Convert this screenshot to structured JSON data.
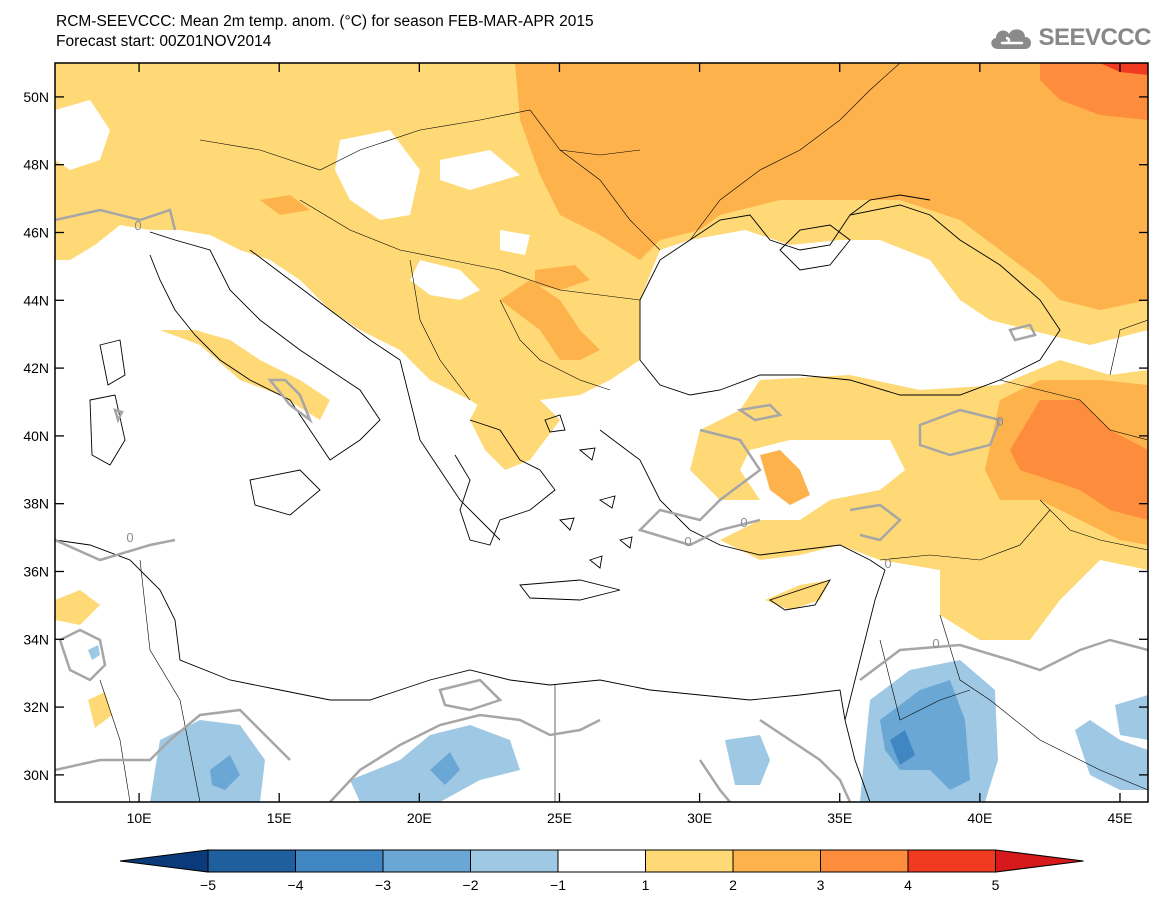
{
  "header": {
    "title_line1": "RCM-SEEVCCC: Mean 2m temp. anom. (°C) for season FEB-MAR-APR 2015",
    "title_line2": "Forecast start: 00Z01NOV2014",
    "logo_text": "SEEVCCC"
  },
  "map": {
    "lat_ticks": [
      {
        "label": "50N",
        "lat": 50
      },
      {
        "label": "48N",
        "lat": 48
      },
      {
        "label": "46N",
        "lat": 46
      },
      {
        "label": "44N",
        "lat": 44
      },
      {
        "label": "42N",
        "lat": 42
      },
      {
        "label": "40N",
        "lat": 40
      },
      {
        "label": "38N",
        "lat": 38
      },
      {
        "label": "36N",
        "lat": 36
      },
      {
        "label": "34N",
        "lat": 34
      },
      {
        "label": "32N",
        "lat": 32
      },
      {
        "label": "30N",
        "lat": 30
      }
    ],
    "lon_ticks": [
      {
        "label": "10E",
        "lon": 10
      },
      {
        "label": "15E",
        "lon": 15
      },
      {
        "label": "20E",
        "lon": 20
      },
      {
        "label": "25E",
        "lon": 25
      },
      {
        "label": "30E",
        "lon": 30
      },
      {
        "label": "35E",
        "lon": 35
      },
      {
        "label": "40E",
        "lon": 40
      },
      {
        "label": "45E",
        "lon": 45
      }
    ],
    "contour_label": "0"
  },
  "legend": {
    "labels": [
      "−5",
      "−4",
      "−3",
      "−2",
      "−1",
      "1",
      "2",
      "3",
      "4",
      "5"
    ],
    "colors": {
      "below_-5": "#0b3a7a",
      "-5_-4": "#1f5f9e",
      "-4_-3": "#3f86c2",
      "-3_-2": "#6aa7d4",
      "-2_-1": "#9fc8e4",
      "-1_1": "#ffffff",
      "1_2": "#fed976",
      "2_3": "#feb24c",
      "3_4": "#fd8d3c",
      "4_5": "#f03b20",
      "above_5": "#d7191c"
    }
  }
}
